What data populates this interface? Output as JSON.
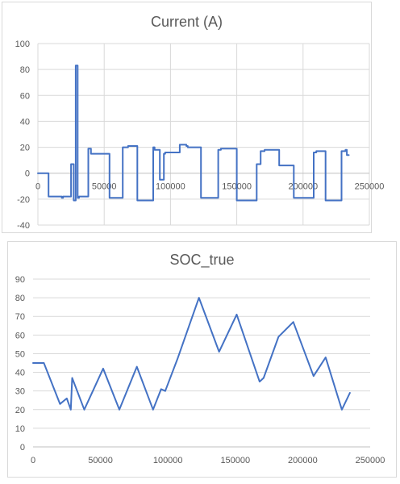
{
  "colors": {
    "series": "#4472c4",
    "grid": "#d9d9d9",
    "text": "#595959",
    "border": "#d9d9d9"
  },
  "chart_data": [
    {
      "type": "line",
      "title": "Current (A)",
      "xlabel": "",
      "ylabel": "",
      "grid": "vertical and horizontal",
      "legend": "none",
      "xlim": [
        0,
        250000
      ],
      "ylim": [
        -40,
        100
      ],
      "x_ticks": [
        0,
        50000,
        100000,
        150000,
        200000,
        250000
      ],
      "y_ticks": [
        -40,
        -20,
        0,
        20,
        40,
        60,
        80,
        100
      ],
      "series": [
        {
          "x": [
            0,
            8000,
            8000,
            18000,
            18000,
            19000,
            19000,
            25000,
            25000,
            27000,
            27000,
            28500,
            28500,
            30000,
            30000,
            31000,
            31000,
            38000,
            38000,
            40000,
            40000,
            54000,
            54000,
            64000,
            64000,
            68000,
            68000,
            75000,
            75000,
            76000,
            76000,
            87000,
            87000,
            88000,
            88000,
            92000,
            92000,
            95000,
            95000,
            96000,
            96000,
            107000,
            107000,
            112000,
            112000,
            113000,
            113000,
            123000,
            123000,
            136000,
            136000,
            138000,
            138000,
            150000,
            150000,
            165000,
            165000,
            168000,
            168000,
            171000,
            171000,
            182000,
            182000,
            186000,
            186000,
            193000,
            193000,
            208000,
            208000,
            210000,
            210000,
            217000,
            217000,
            229000,
            229000,
            232000,
            232000,
            233000,
            233000,
            234500
          ],
          "y": [
            0,
            0,
            -18,
            -18,
            -19,
            -19,
            -18,
            -18,
            7,
            7,
            -21,
            -21,
            83,
            83,
            -19,
            -19,
            -18,
            -18,
            19,
            19,
            15,
            15,
            -19,
            -19,
            20,
            20,
            21,
            21,
            -21,
            -21,
            -21,
            -21,
            20,
            20,
            18,
            18,
            -5,
            -5,
            15,
            15,
            16,
            16,
            22,
            22,
            21,
            21,
            20,
            20,
            -19,
            -19,
            18,
            18,
            19,
            19,
            -21,
            -21,
            7,
            7,
            17,
            17,
            18,
            18,
            6,
            6,
            6,
            6,
            -19,
            -19,
            16,
            16,
            17,
            17,
            -21,
            -21,
            17,
            17,
            18,
            18,
            14,
            14
          ]
        }
      ]
    },
    {
      "type": "line",
      "title": "SOC_true",
      "xlabel": "",
      "ylabel": "",
      "grid": "horizontal",
      "legend": "none",
      "xlim": [
        0,
        250000
      ],
      "ylim": [
        0,
        90
      ],
      "x_ticks": [
        0,
        50000,
        100000,
        150000,
        200000,
        250000
      ],
      "y_ticks": [
        0,
        10,
        20,
        30,
        40,
        50,
        60,
        70,
        80,
        90
      ],
      "series": [
        {
          "x": [
            0,
            8000,
            20000,
            25000,
            28000,
            29000,
            38000,
            52000,
            64000,
            77000,
            89000,
            95000,
            98000,
            107000,
            123000,
            138000,
            151000,
            168000,
            171000,
            182000,
            193000,
            208000,
            217000,
            229000,
            235000
          ],
          "y": [
            45,
            45,
            23,
            26,
            20,
            37,
            20,
            42,
            20,
            43,
            20,
            31,
            30,
            47,
            80,
            51,
            71,
            35,
            37,
            59,
            67,
            38,
            48,
            20,
            29
          ]
        }
      ]
    }
  ]
}
